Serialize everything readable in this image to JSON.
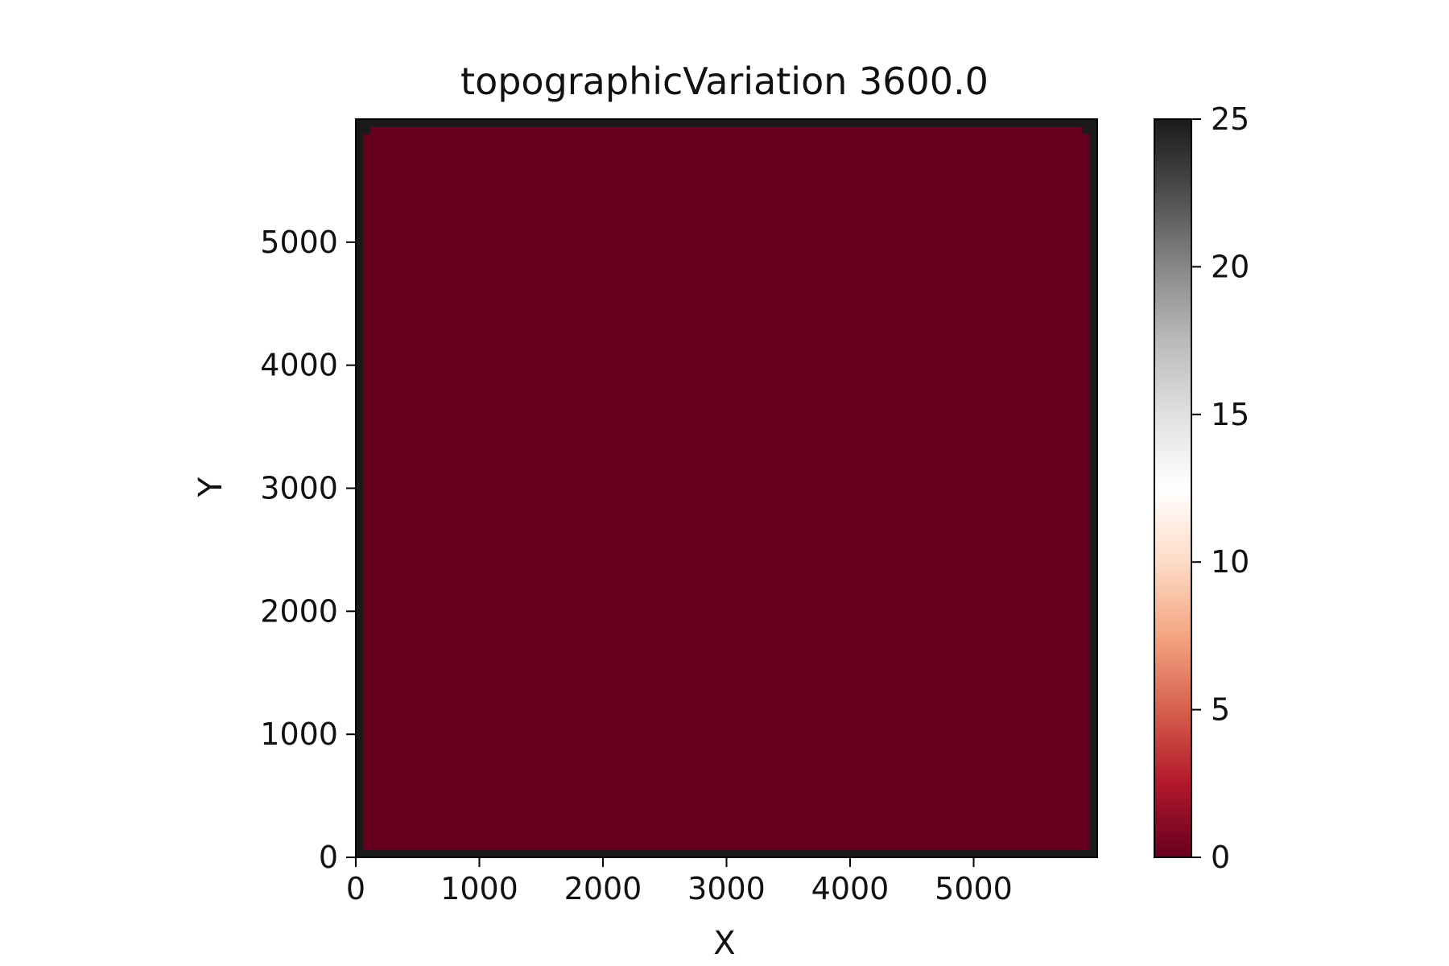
{
  "chart_data": {
    "type": "heatmap",
    "title": "topographicVariation 3600.0",
    "xlabel": "X",
    "ylabel": "Y",
    "xlim": [
      0,
      6000
    ],
    "ylim": [
      0,
      6000
    ],
    "xticks": [
      0,
      1000,
      2000,
      3000,
      4000,
      5000
    ],
    "yticks": [
      0,
      1000,
      2000,
      3000,
      4000,
      5000
    ],
    "field": {
      "description_value": 0,
      "interior_value": 0,
      "edge_value": 25,
      "grid_step": 60
    },
    "colorbar": {
      "colormap": "RdGy",
      "vmin": 0,
      "vmax": 25,
      "ticks": [
        0,
        5,
        10,
        15,
        20,
        25
      ],
      "stops": [
        "#67001f",
        "#b2182b",
        "#d6604d",
        "#f4a582",
        "#fddbc7",
        "#ffffff",
        "#e0e0e0",
        "#bababa",
        "#878787",
        "#4d4d4d",
        "#1a1a1a"
      ]
    },
    "grid": false
  }
}
